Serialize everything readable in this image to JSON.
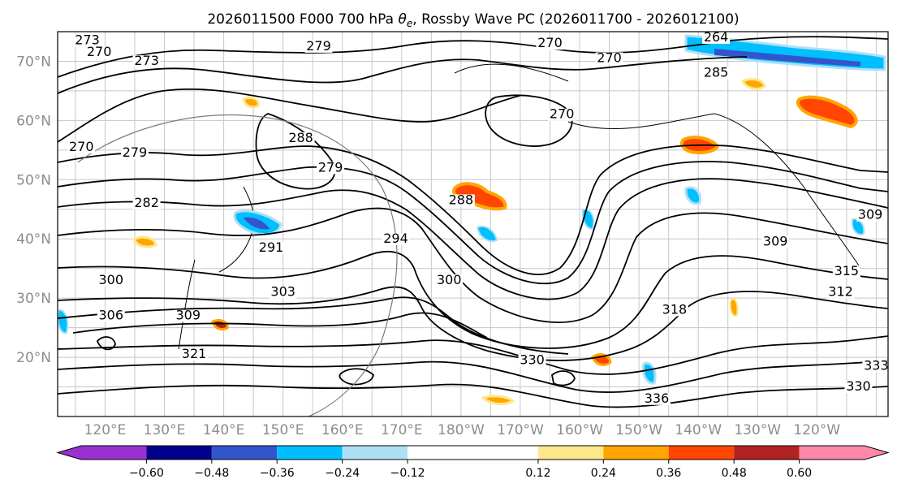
{
  "title": {
    "prefix": "2026011500 F000 700 hPa ",
    "theta": "θ",
    "sub": "e",
    "suffix": ", Rossby Wave PC (2026011700 - 2026012100)"
  },
  "lat_labels": [
    "70°N",
    "60°N",
    "50°N",
    "40°N",
    "30°N",
    "20°N"
  ],
  "lat_values": [
    70,
    60,
    50,
    40,
    30,
    20
  ],
  "lon_labels": [
    "120°E",
    "130°E",
    "140°E",
    "150°E",
    "160°E",
    "170°E",
    "180°W",
    "170°W",
    "160°W",
    "150°W",
    "140°W",
    "130°W",
    "120°W"
  ],
  "lon_values": [
    120,
    130,
    140,
    150,
    160,
    170,
    180,
    190,
    200,
    210,
    220,
    230,
    240
  ],
  "map_extent": {
    "lon_min": 112,
    "lon_max": 252,
    "lat_min": 10,
    "lat_max": 75
  },
  "colorbar": {
    "ticks": [
      "−0.60",
      "−0.48",
      "−0.36",
      "−0.24",
      "−0.12",
      "0.12",
      "0.24",
      "0.36",
      "0.48",
      "0.60"
    ],
    "tick_values": [
      -0.6,
      -0.48,
      -0.36,
      -0.24,
      -0.12,
      0.12,
      0.24,
      0.36,
      0.48,
      0.6
    ],
    "range": [
      -0.72,
      0.72
    ],
    "colors": [
      "#9a30d0",
      "#00008b",
      "#3355cc",
      "#00bfff",
      "#aee0f5",
      "#ffffff",
      "#ffe88a",
      "#ffa500",
      "#ff4500",
      "#b22222",
      "#ff88aa"
    ]
  },
  "contour_labels": [
    {
      "text": "273",
      "lon": 117,
      "lat": 73
    },
    {
      "text": "270",
      "lon": 119,
      "lat": 71
    },
    {
      "text": "273",
      "lon": 127,
      "lat": 69.5
    },
    {
      "text": "279",
      "lon": 156,
      "lat": 72
    },
    {
      "text": "270",
      "lon": 195,
      "lat": 72.5
    },
    {
      "text": "270",
      "lon": 205,
      "lat": 70
    },
    {
      "text": "264",
      "lon": 223,
      "lat": 73.5
    },
    {
      "text": "285",
      "lon": 223,
      "lat": 67.5
    },
    {
      "text": "270",
      "lon": 197,
      "lat": 60.5
    },
    {
      "text": "270",
      "lon": 116,
      "lat": 55
    },
    {
      "text": "279",
      "lon": 125,
      "lat": 54
    },
    {
      "text": "288",
      "lon": 153,
      "lat": 56.5
    },
    {
      "text": "279",
      "lon": 158,
      "lat": 51.5
    },
    {
      "text": "282",
      "lon": 127,
      "lat": 45.5
    },
    {
      "text": "288",
      "lon": 180,
      "lat": 46
    },
    {
      "text": "294",
      "lon": 169,
      "lat": 39.5
    },
    {
      "text": "291",
      "lon": 148,
      "lat": 38
    },
    {
      "text": "300",
      "lon": 178,
      "lat": 32.5
    },
    {
      "text": "300",
      "lon": 121,
      "lat": 32.5
    },
    {
      "text": "303",
      "lon": 150,
      "lat": 30.5
    },
    {
      "text": "306",
      "lon": 121,
      "lat": 26.5
    },
    {
      "text": "309",
      "lon": 134,
      "lat": 26.5
    },
    {
      "text": "321",
      "lon": 135,
      "lat": 20
    },
    {
      "text": "318",
      "lon": 216,
      "lat": 27.5
    },
    {
      "text": "309",
      "lon": 233,
      "lat": 39
    },
    {
      "text": "315",
      "lon": 245,
      "lat": 34
    },
    {
      "text": "312",
      "lon": 244,
      "lat": 30.5
    },
    {
      "text": "309",
      "lon": 249,
      "lat": 43.5
    },
    {
      "text": "330",
      "lon": 192,
      "lat": 19
    },
    {
      "text": "330",
      "lon": 247,
      "lat": 14.5
    },
    {
      "text": "333",
      "lon": 250,
      "lat": 18
    },
    {
      "text": "336",
      "lon": 213,
      "lat": 12.5
    }
  ]
}
